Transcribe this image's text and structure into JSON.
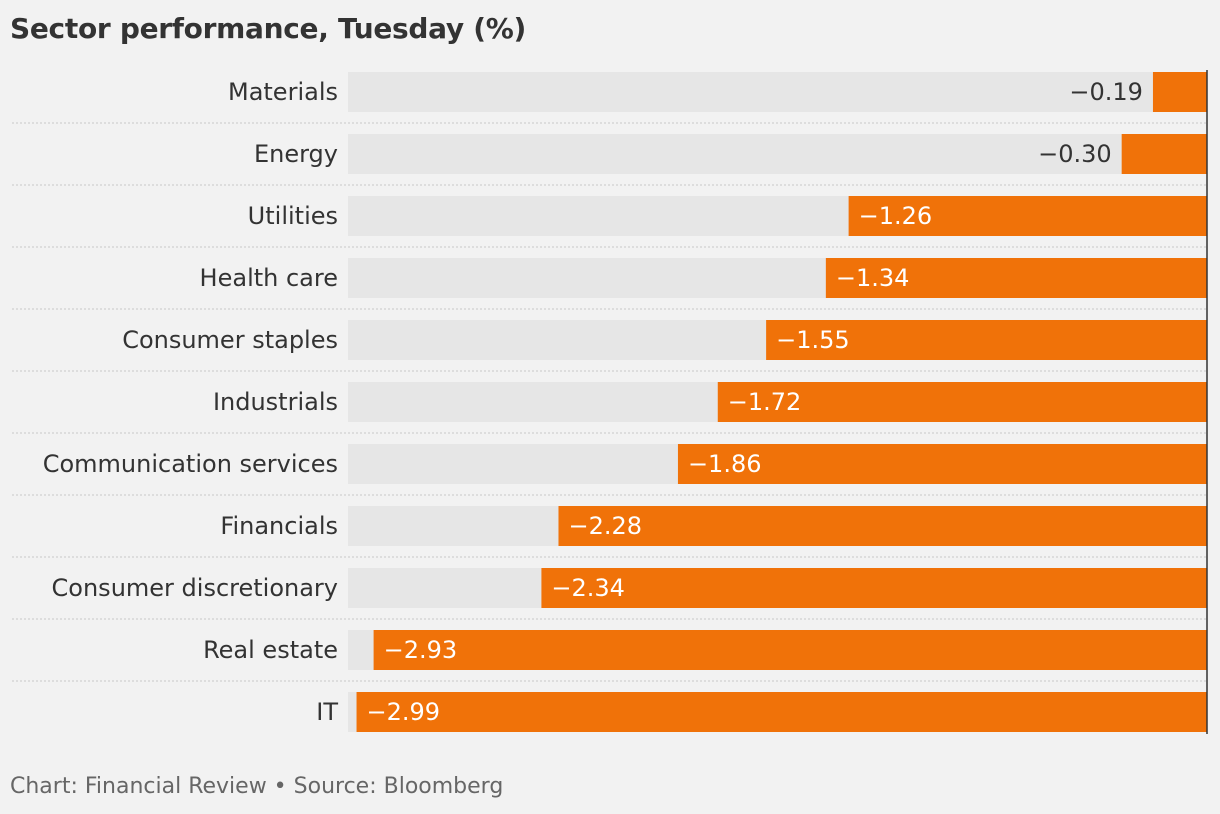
{
  "title": "Sector performance, Tuesday (%)",
  "source": "Chart: Financial Review • Source: Bloomberg",
  "colors": {
    "bar": "#f07209",
    "track": "#e6e6e6",
    "background": "#f2f2f2",
    "text": "#333333",
    "label_inside": "#ffffff",
    "separator": "#c8c8c8",
    "axis": "#333333"
  },
  "chart_data": {
    "type": "bar",
    "orientation": "horizontal",
    "title": "Sector performance, Tuesday (%)",
    "categories": [
      "Materials",
      "Energy",
      "Utilities",
      "Health care",
      "Consumer staples",
      "Industrials",
      "Communication services",
      "Financials",
      "Consumer discretionary",
      "Real estate",
      "IT"
    ],
    "values": [
      -0.19,
      -0.3,
      -1.26,
      -1.34,
      -1.55,
      -1.72,
      -1.86,
      -2.28,
      -2.34,
      -2.93,
      -2.99
    ],
    "value_labels": [
      "−0.19",
      "−0.30",
      "−1.26",
      "−1.34",
      "−1.55",
      "−1.72",
      "−1.86",
      "−2.28",
      "−2.34",
      "−2.93",
      "−2.99"
    ],
    "xlim": [
      -3.02,
      0
    ],
    "grid": false,
    "legend": "none"
  }
}
